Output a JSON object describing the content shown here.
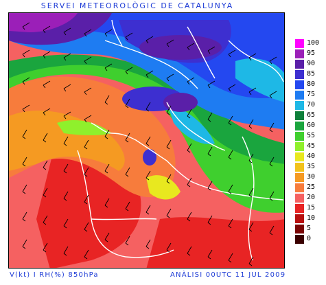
{
  "header": {
    "title": "SERVEI METEOROLÒGIC DE CATALUNYA"
  },
  "footer": {
    "left": "V(kt) I RH(%) 850hPa",
    "right": "ANÀLISI 00UTC 11 JUL 2009"
  },
  "legend": {
    "levels": [
      {
        "label": "100",
        "color": "#ff00ff"
      },
      {
        "label": "95",
        "color": "#9b1fb8"
      },
      {
        "label": "90",
        "color": "#5a1fa8"
      },
      {
        "label": "85",
        "color": "#3d2fd0"
      },
      {
        "label": "80",
        "color": "#2448f0"
      },
      {
        "label": "75",
        "color": "#1e7cf2"
      },
      {
        "label": "70",
        "color": "#1eb8e6"
      },
      {
        "label": "65",
        "color": "#0e7f3a"
      },
      {
        "label": "60",
        "color": "#1aa53e"
      },
      {
        "label": "55",
        "color": "#3fcf2e"
      },
      {
        "label": "45",
        "color": "#8ff02c"
      },
      {
        "label": "40",
        "color": "#e8e81f"
      },
      {
        "label": "35",
        "color": "#f2c21a"
      },
      {
        "label": "30",
        "color": "#f59a22"
      },
      {
        "label": "25",
        "color": "#f77c3c"
      },
      {
        "label": "20",
        "color": "#f56161"
      },
      {
        "label": "15",
        "color": "#e82424"
      },
      {
        "label": "10",
        "color": "#b80f0f"
      },
      {
        "label": "5",
        "color": "#7a0505"
      },
      {
        "label": "0",
        "color": "#3a0000"
      }
    ]
  }
}
